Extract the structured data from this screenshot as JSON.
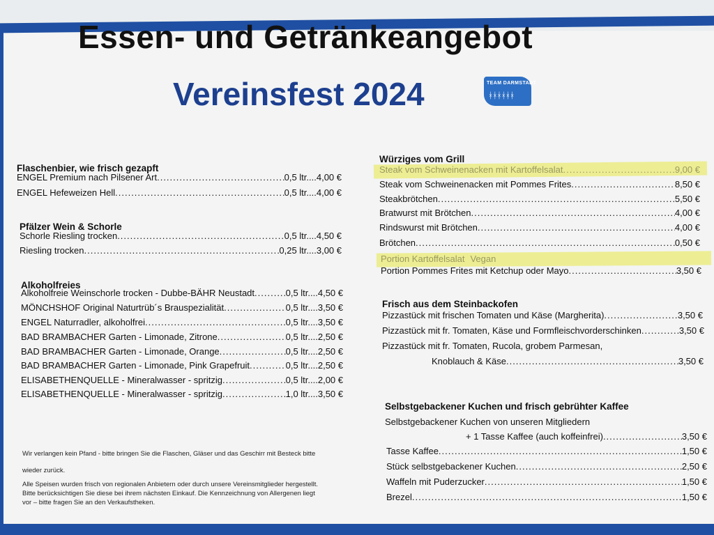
{
  "header": {
    "title": "Essen- und Getränkeangebot",
    "subtitle": "Vereinsfest 2024",
    "logo_text": "TEAM DARMSTADT",
    "logo_figures": "ᚼᚼᚼᚼᚼᚼ"
  },
  "colors": {
    "brand_blue": "#1d3f8f",
    "frame_blue": "#1f4fa3",
    "highlight": "#ecec8a"
  },
  "left": {
    "sections": [
      {
        "heading": "Flaschenbier, wie frisch gezapft",
        "items": [
          {
            "name": "ENGEL Premium nach Pilsener Art ",
            "price": "0,5 ltr....4,00 €"
          },
          {
            "name": "ENGEL Hefeweizen Hell ",
            "price": "0,5 ltr....4,00 €"
          }
        ]
      },
      {
        "heading": "Pfälzer Wein & Schorle",
        "items": [
          {
            "name": "Schorle Riesling trocken",
            "price": "0,5 ltr....4,50 €"
          },
          {
            "name": "Riesling trocken ",
            "price": "0,25 ltr....3,00 €"
          }
        ]
      },
      {
        "heading": "Alkoholfreies",
        "items": [
          {
            "name": "Alkoholfreie Weinschorle trocken - Dubbe-BÄHR Neustadt",
            "price": "0,5 ltr....4,50 €"
          },
          {
            "name": "MÖNCHSHOF Original Naturtrüb´s Brauspezialität ",
            "price": "0,5 ltr....3,50 €"
          },
          {
            "name": "ENGEL Naturradler, alkoholfrei",
            "price": "0,5 ltr....3,50 €"
          },
          {
            "name": "BAD BRAMBACHER Garten - Limonade, Zitrone ",
            "price": "0,5 ltr....2,50 €"
          },
          {
            "name": "BAD BRAMBACHER Garten - Limonade, Orange",
            "price": "0,5 ltr....2,50 €"
          },
          {
            "name": "BAD BRAMBACHER Garten - Limonade, Pink Grapefruit",
            "price": "0,5 ltr....2,50 €"
          },
          {
            "name": "ELISABETHENQUELLE - Mineralwasser - spritzig ",
            "price": "0,5 ltr....2,00 €"
          },
          {
            "name": "ELISABETHENQUELLE - Mineralwasser - spritzig ",
            "price": "1,0 ltr....3,50 €"
          }
        ]
      }
    ],
    "notes": [
      "Wir verlangen kein Pfand - bitte bringen Sie die Flaschen, Gläser und das Geschirr mit Besteck bitte",
      "wieder zurück.",
      "Alle Speisen wurden frisch von regionalen Anbietern oder durch unsere Vereinsmitglieder hergestellt.",
      "Bitte berücksichtigen Sie diese bei ihrem nächsten Einkauf. Die Kennzeichnung von Allergenen liegt",
      "vor – bitte fragen Sie an den Verkaufstheken."
    ]
  },
  "right": {
    "grill": {
      "heading": "Würziges vom Grill",
      "struck_1": "Steak vom Schweinenacken mit Kartoffelsalat",
      "struck_1_price": "9,00 €",
      "items": [
        {
          "name": "Steak vom Schweinenacken mit Pommes Frites ",
          "price": "8,50 €"
        },
        {
          "name": "Steakbrötchen",
          "price": "5,50 €"
        },
        {
          "name": "Bratwurst mit Brötchen",
          "price": "4,00 €"
        },
        {
          "name": "Rindswurst mit Brötchen ",
          "price": "4,00 €"
        },
        {
          "name": "Brötchen",
          "price": "0,50 €"
        }
      ],
      "struck_2": "Portion Kartoffelsalat",
      "struck_2_extra": "Vegan",
      "last_item": {
        "name": "Portion Pommes Frites mit Ketchup oder Mayo ",
        "price": "3,50 €"
      }
    },
    "oven": {
      "heading": "Frisch aus dem Steinbackofen",
      "items": [
        {
          "name": "Pizzastück mit frischen Tomaten und Käse (Margherita) ",
          "price": "3,50 €"
        },
        {
          "name": "Pizzastück mit fr. Tomaten, Käse und Formfleischvorderschinken",
          "price": "3,50 €"
        }
      ],
      "multi_line_1": "Pizzastück mit fr. Tomaten, Rucola, grobem Parmesan,",
      "multi_line_2": {
        "name": "Knoblauch & Käse ",
        "price": "3,50 €"
      }
    },
    "cake": {
      "heading": "Selbstgebackener Kuchen und frisch gebrühter Kaffee",
      "line_1": "Selbstgebackener Kuchen von unseren Mitgliedern",
      "line_2": {
        "name": "+ 1 Tasse Kaffee (auch koffeinfrei)",
        "price": "3,50 €"
      },
      "items": [
        {
          "name": "Tasse Kaffee ",
          "price": "1,50 €"
        },
        {
          "name": "Stück selbstgebackener Kuchen",
          "price": "2,50 €"
        },
        {
          "name": "Waffeln mit Puderzucker ",
          "price": "1,50 €"
        },
        {
          "name": "Brezel",
          "price": "1,50 €"
        }
      ]
    }
  }
}
